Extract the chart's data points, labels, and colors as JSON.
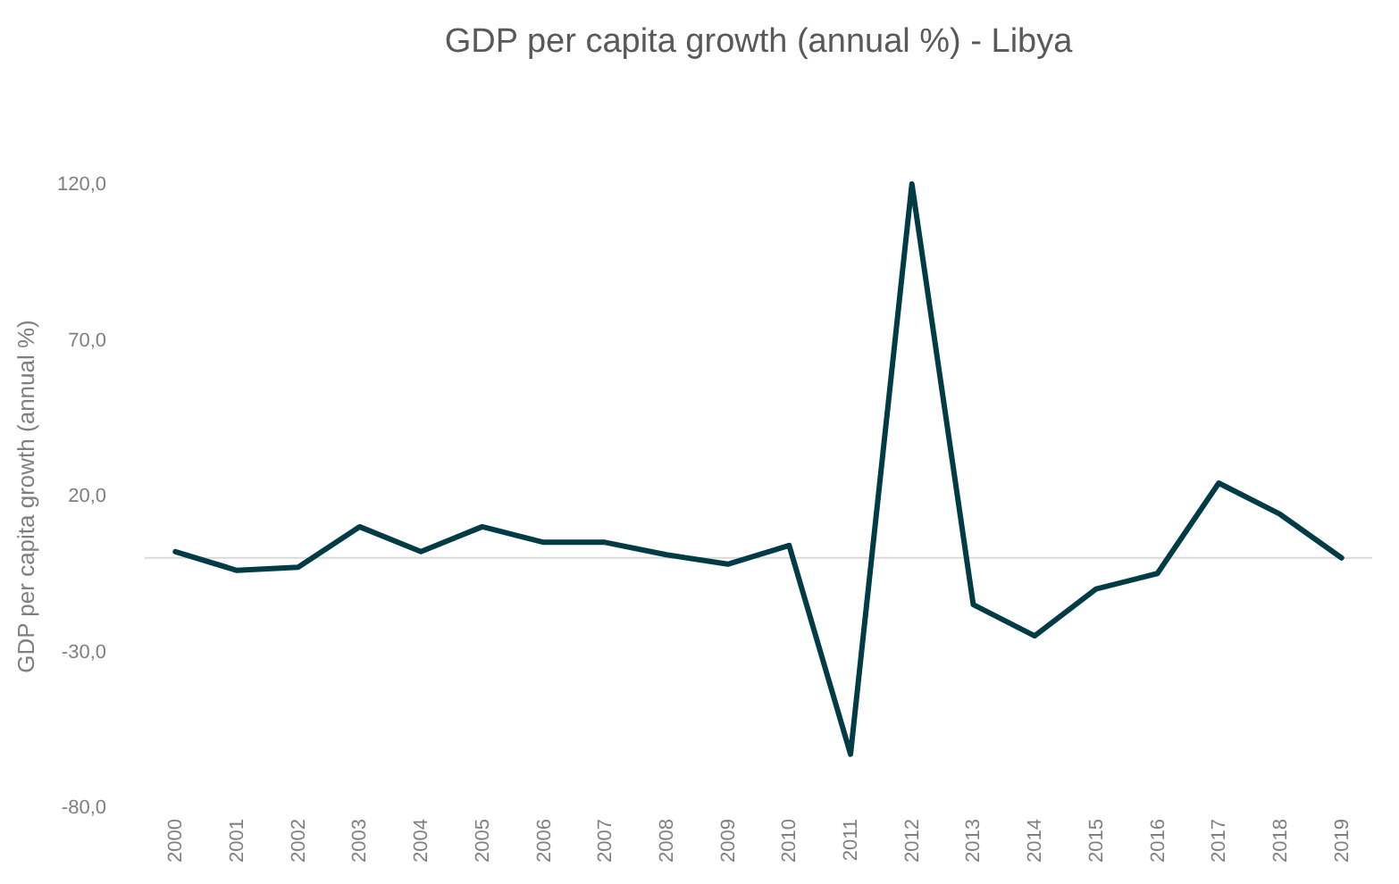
{
  "chart_data": {
    "type": "line",
    "title": "GDP per capita growth (annual %) - Libya",
    "ylabel": "GDP per capita growth (annual %)",
    "categories": [
      "2000",
      "2001",
      "2002",
      "2003",
      "2004",
      "2005",
      "2006",
      "2007",
      "2008",
      "2009",
      "2010",
      "2011",
      "2012",
      "2013",
      "2014",
      "2015",
      "2016",
      "2017",
      "2018",
      "2019"
    ],
    "series": [
      {
        "color": "#003b46",
        "values": [
          2,
          -4,
          -3,
          10,
          2,
          10,
          5,
          5,
          1,
          -2,
          4,
          -63,
          120,
          -15,
          -25,
          -10,
          -5,
          24,
          14,
          0
        ]
      }
    ],
    "ylim": [
      -80,
      120
    ],
    "yticks": [
      {
        "value": -80,
        "label": "-80,0"
      },
      {
        "value": -30,
        "label": "-30,0"
      },
      {
        "value": 20,
        "label": "20,0"
      },
      {
        "value": 70,
        "label": "70,0"
      },
      {
        "value": 120,
        "label": "120,0"
      }
    ],
    "ref_lines": [
      {
        "axis": "y",
        "value": 0,
        "color": "#d9d9d9"
      }
    ],
    "grid": false,
    "legend": false,
    "marker": "none",
    "line_style": "solid"
  }
}
